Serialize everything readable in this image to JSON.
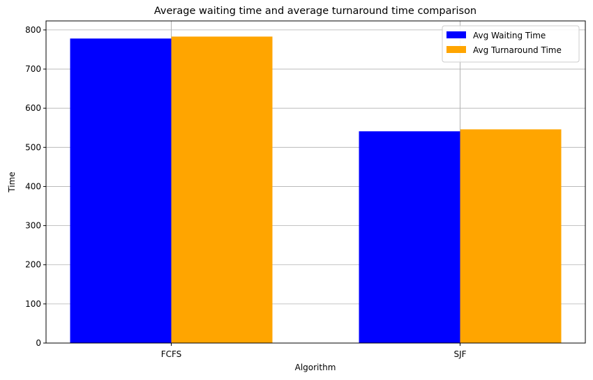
{
  "chart_data": {
    "type": "bar",
    "title": "Average waiting time and average turnaround time comparison",
    "xlabel": "Algorithm",
    "ylabel": "Time",
    "categories": [
      "FCFS",
      "SJF"
    ],
    "series": [
      {
        "name": "Avg Waiting Time",
        "color": "#0000ff",
        "values": [
          778,
          541
        ]
      },
      {
        "name": "Avg Turnaround Time",
        "color": "#ffa500",
        "values": [
          783,
          546
        ]
      }
    ],
    "ylim": [
      0,
      823
    ],
    "yticks": [
      0,
      100,
      200,
      300,
      400,
      500,
      600,
      700,
      800
    ],
    "grid": true,
    "legend_position": "top-right"
  }
}
